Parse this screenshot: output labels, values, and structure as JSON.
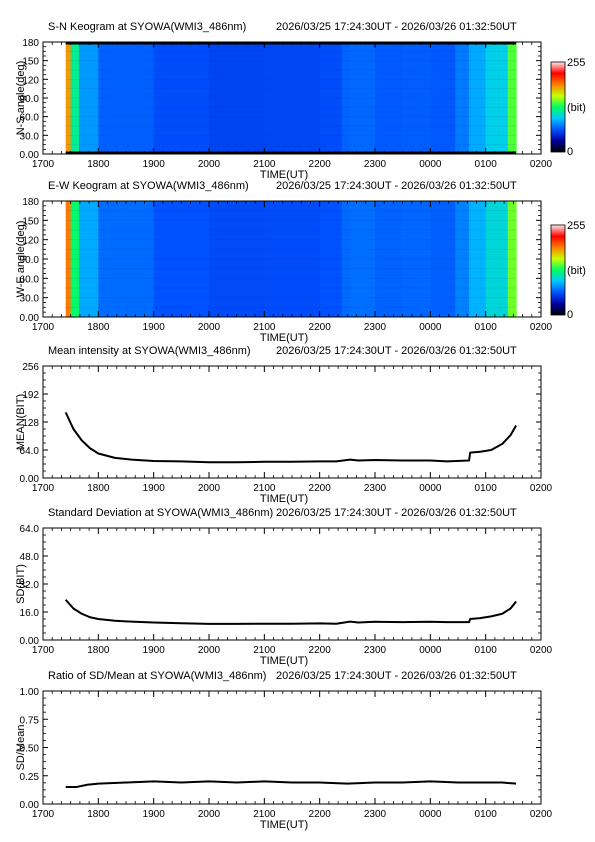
{
  "time_range": "2026/03/25 17:24:30UT - 2026/03/26 01:32:50UT",
  "colorbar": {
    "max_label": "255",
    "unit_label": "(bit)",
    "min_label": "0",
    "colors": [
      "#000000",
      "#0000a0",
      "#0050ff",
      "#00c8ff",
      "#00ff60",
      "#c8ff00",
      "#ff8000",
      "#ff0000",
      "#ffe8e8"
    ]
  },
  "x_ticks": [
    "1700",
    "1800",
    "1900",
    "2000",
    "2100",
    "2200",
    "2300",
    "0000",
    "0100",
    "0200"
  ],
  "chart_data": [
    {
      "type": "heatmap",
      "title": "S-N Keogram at SYOWA(WMI3_486nm)",
      "xlabel": "TIME(UT)",
      "ylabel": "N-S angle(deg)",
      "yticks": [
        "0.00",
        "30.0",
        "60.0",
        "90.0",
        "120",
        "150",
        "180"
      ],
      "ylim": [
        0,
        180
      ],
      "x_hours": [
        17.41,
        17.5,
        17.65,
        18,
        19,
        20,
        21,
        22,
        22.4,
        22.55,
        23,
        23.5,
        24,
        24.45,
        24.7,
        25,
        25.4,
        25.55
      ],
      "intensity": [
        230,
        140,
        95,
        72,
        64,
        60,
        59,
        61,
        63,
        74,
        66,
        67,
        68,
        64,
        86,
        90,
        110,
        170
      ],
      "dark_band_deg": [
        [
          0,
          4
        ],
        [
          176,
          180
        ]
      ]
    },
    {
      "type": "heatmap",
      "title": "E-W Keogram at SYOWA(WMI3_486nm)",
      "xlabel": "TIME(UT)",
      "ylabel": "W-E angle(deg)",
      "yticks": [
        "0.00",
        "30.0",
        "60.0",
        "90.0",
        "120",
        "150",
        "180"
      ],
      "ylim": [
        0,
        180
      ],
      "x_hours": [
        17.41,
        17.5,
        17.65,
        18,
        19,
        20,
        21,
        22,
        22.4,
        22.55,
        23,
        23.5,
        24,
        24.45,
        24.7,
        25,
        25.4,
        25.55
      ],
      "intensity": [
        235,
        150,
        100,
        76,
        66,
        62,
        61,
        63,
        65,
        76,
        68,
        69,
        70,
        66,
        88,
        92,
        115,
        175
      ]
    },
    {
      "type": "line",
      "title": "Mean intensity at SYOWA(WMI3_486nm)",
      "xlabel": "TIME(UT)",
      "ylabel": "MEAN(BIT)",
      "yticks": [
        "0.00",
        "64.0",
        "128",
        "192",
        "256"
      ],
      "ylim": [
        0,
        256
      ],
      "x": [
        17.41,
        17.55,
        17.7,
        17.85,
        18,
        18.3,
        18.6,
        19,
        19.5,
        20,
        20.5,
        21,
        21.5,
        22,
        22.3,
        22.55,
        22.7,
        23,
        23.5,
        24,
        24.3,
        24.7,
        24.72,
        24.9,
        25.1,
        25.3,
        25.45,
        25.55
      ],
      "y": [
        150,
        112,
        86,
        68,
        56,
        46,
        42,
        39,
        38,
        36,
        36,
        37,
        37,
        38,
        38,
        42,
        40,
        41,
        40,
        40,
        38,
        40,
        58,
        60,
        64,
        78,
        98,
        120
      ]
    },
    {
      "type": "line",
      "title": "Standard Deviation at SYOWA(WMI3_486nm)",
      "xlabel": "TIME(UT)",
      "ylabel": "SD(BIT)",
      "yticks": [
        "0.00",
        "16.0",
        "32.0",
        "48.0",
        "64.0"
      ],
      "ylim": [
        0,
        64
      ],
      "x": [
        17.41,
        17.55,
        17.7,
        17.85,
        18,
        18.3,
        18.6,
        19,
        19.5,
        20,
        20.5,
        21,
        21.5,
        22,
        22.3,
        22.55,
        22.7,
        23,
        23.5,
        24,
        24.3,
        24.7,
        24.72,
        24.9,
        25.1,
        25.3,
        25.45,
        25.55
      ],
      "y": [
        23,
        18,
        15,
        13,
        12,
        11,
        10.5,
        10,
        9.6,
        9.2,
        9.2,
        9.3,
        9.3,
        9.5,
        9.3,
        10.5,
        10,
        10.4,
        10.2,
        10.4,
        10.2,
        10.2,
        12,
        12.5,
        13.5,
        15,
        18,
        22
      ]
    },
    {
      "type": "line",
      "title": "Ratio of SD/Mean at SYOWA(WMI3_486nm)",
      "xlabel": "TIME(UT)",
      "ylabel": "SD/Mean",
      "yticks": [
        "0.00",
        "0.25",
        "0.50",
        "0.75",
        "1.00"
      ],
      "ylim": [
        0,
        1
      ],
      "x": [
        17.41,
        17.6,
        17.8,
        18,
        18.5,
        19,
        19.5,
        20,
        20.5,
        21,
        21.5,
        22,
        22.5,
        23,
        23.5,
        24,
        24.5,
        25,
        25.3,
        25.55
      ],
      "y": [
        0.15,
        0.15,
        0.17,
        0.18,
        0.19,
        0.2,
        0.19,
        0.2,
        0.19,
        0.2,
        0.19,
        0.19,
        0.18,
        0.19,
        0.19,
        0.2,
        0.19,
        0.19,
        0.19,
        0.18
      ]
    }
  ]
}
